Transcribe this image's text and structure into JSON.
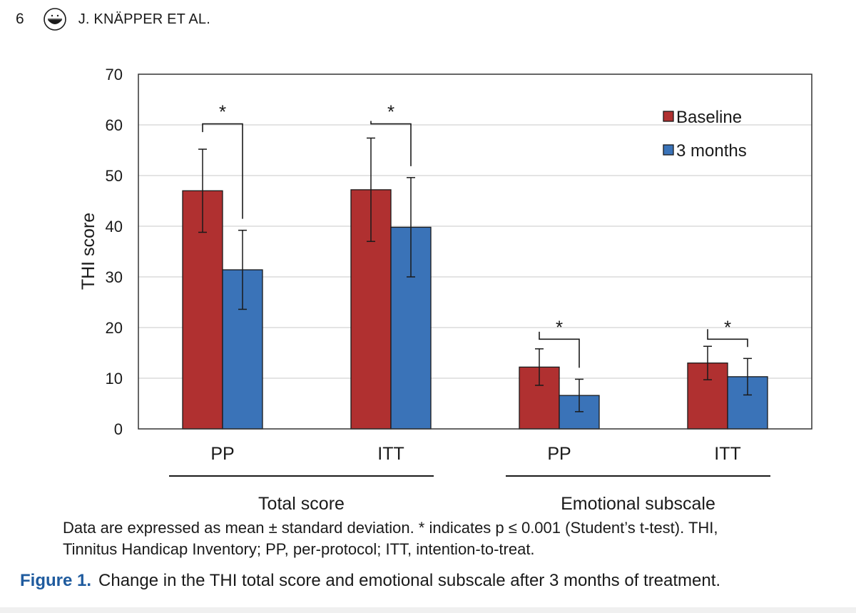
{
  "header": {
    "page_number": "6",
    "authors": "J. KNÄPPER ET AL."
  },
  "note": {
    "line1": "Data are expressed as mean ± standard deviation. * indicates p ≤ 0.001 (Student’s t-test). THI,",
    "line2": "Tinnitus Handicap Inventory; PP, per-protocol; ITT, intention-to-treat."
  },
  "caption": {
    "label": "Figure 1.",
    "text": "Change in the THI total score and emotional subscale after 3 months of treatment."
  },
  "chart_data": {
    "type": "bar",
    "ylabel": "THI score",
    "ylim": [
      0,
      70
    ],
    "yticks": [
      0,
      10,
      20,
      30,
      40,
      50,
      60,
      70
    ],
    "grid": true,
    "legend_position": "top-right",
    "categories": [
      "PP",
      "ITT",
      "PP",
      "ITT"
    ],
    "groups": [
      {
        "label": "Total score",
        "categories": [
          0,
          1
        ]
      },
      {
        "label": "Emotional subscale",
        "categories": [
          2,
          3
        ]
      }
    ],
    "series": [
      {
        "name": "Baseline",
        "color": "#b03030",
        "values": [
          47.0,
          47.2,
          12.2,
          13.0
        ],
        "sd": [
          8.2,
          10.2,
          3.6,
          3.3
        ]
      },
      {
        "name": "3 months",
        "color": "#3a73b8",
        "values": [
          31.4,
          39.8,
          6.6,
          10.3
        ],
        "sd": [
          7.8,
          9.8,
          3.2,
          3.6
        ]
      }
    ],
    "significance": [
      {
        "category": 0,
        "label": "*",
        "bracket_y": 60.2
      },
      {
        "category": 1,
        "label": "*",
        "bracket_y": 60.2
      },
      {
        "category": 2,
        "label": "*",
        "bracket_y": 17.7
      },
      {
        "category": 3,
        "label": "*",
        "bracket_y": 17.7
      }
    ]
  }
}
